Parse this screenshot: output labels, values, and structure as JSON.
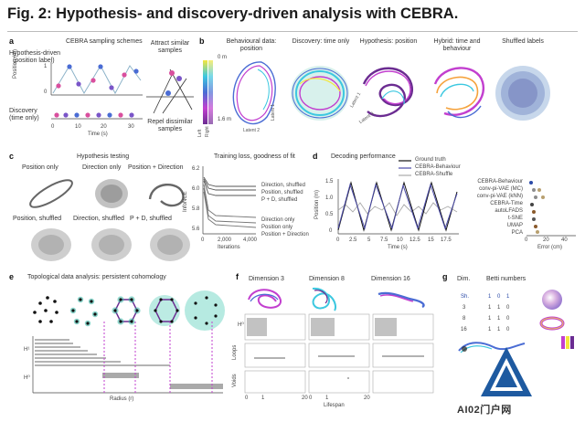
{
  "figure": {
    "title": "Fig. 2: Hypothesis- and discovery-driven analysis with CEBRA."
  },
  "panel_a": {
    "label": "a",
    "title": "CEBRA sampling schemes",
    "row1_label": "Hypothesis-driven",
    "row1_sublabel": "(position label)",
    "ylabel": "Position (m)",
    "yticks": [
      "1",
      "0"
    ],
    "row2_label": "Discovery",
    "row2_sublabel": "(time only)",
    "xticks": [
      "0",
      "10",
      "20",
      "30"
    ],
    "xlabel": "Time (s)",
    "attract_label": "Attract similar samples",
    "repel_label": "Repel dissimilar samples"
  },
  "panel_b": {
    "label": "b",
    "titles": [
      "Behavioural data: position",
      "Discovery: time only",
      "Hypothesis: position",
      "Hybrid: time and behaviour",
      "Shuffled labels"
    ],
    "colorbar_top": "0 m",
    "colorbar_bottom": "1.6 m",
    "colorbar_left": "Left",
    "colorbar_right": "Right",
    "latent1": "Latent 1",
    "latent2": "Latent 2",
    "latent3": "Latent 3"
  },
  "panel_c": {
    "label": "c",
    "title": "Hypothesis testing",
    "row1": [
      "Position only",
      "Direction only",
      "Position + Direction"
    ],
    "row2": [
      "Position, shuffled",
      "Direction, shuffled",
      "P + D, shuffled"
    ],
    "loss_title": "Training loss, goodness of fit",
    "ylabel": "InfoNCE",
    "yticks": [
      "6.2",
      "6.0",
      "5.8",
      "5.6"
    ],
    "xticks": [
      "0",
      "2,000",
      "4,000"
    ],
    "xlabel": "Iterations",
    "curve_labels": [
      "Direction, shuffled",
      "Position, shuffled",
      "P + D, shuffled",
      "Direction only",
      "Position only",
      "Position + Direction"
    ]
  },
  "panel_d": {
    "label": "d",
    "title": "Decoding performance",
    "legend": [
      "Ground truth",
      "CEBRA-Behaviour",
      "CEBRA-Shuffle"
    ],
    "ylabel": "Position (m)",
    "yticks": [
      "1.5",
      "1.0",
      "0.5",
      "0"
    ],
    "xticks": [
      "0",
      "2.5",
      "5",
      "7.5",
      "10",
      "12.5",
      "15",
      "17.5"
    ],
    "xlabel": "Time (s)",
    "methods": [
      "CEBRA-Behaviour",
      "conv-pi-VAE (MC)",
      "conv-pi-VAE (kNN)",
      "CEBRA-Time",
      "autoLFADS",
      "t-SNE",
      "UMAP",
      "PCA"
    ],
    "err_xticks": [
      "0",
      "20",
      "40"
    ],
    "err_xlabel": "Error (cm)"
  },
  "panel_e": {
    "label": "e",
    "title": "Topological data analysis: persistent cohomology",
    "h1": "H¹",
    "h0": "H⁰",
    "xlabel": "Radius (r)"
  },
  "panel_f": {
    "label": "f",
    "titles": [
      "Dimension 3",
      "Dimension 8",
      "Dimension 16"
    ],
    "row_labels": [
      "H⁰",
      "Loops",
      "Voids"
    ],
    "xticks": [
      "0",
      "1",
      "20"
    ],
    "xlabel": "Lifespan"
  },
  "panel_g": {
    "label": "g",
    "dim_header": "Dim.",
    "betti_header": "Betti numbers",
    "rows": [
      {
        "dim": "Sh.",
        "b": [
          "1",
          "0",
          "1"
        ]
      },
      {
        "dim": "3",
        "b": [
          "1",
          "1",
          "0"
        ]
      },
      {
        "dim": "8",
        "b": [
          "1",
          "1",
          "0"
        ]
      },
      {
        "dim": "16",
        "b": [
          "1",
          "1",
          "0"
        ]
      }
    ]
  },
  "watermark": {
    "text": "AI02门户网"
  },
  "colors": {
    "accent_purple": "#6b2c91",
    "dot_pink": "#d94f9e",
    "dot_teal": "#2ab3a0",
    "dot_blue": "#4a6cd4",
    "magenta_dashed": "#c23fcf",
    "gray_text": "#333333"
  }
}
